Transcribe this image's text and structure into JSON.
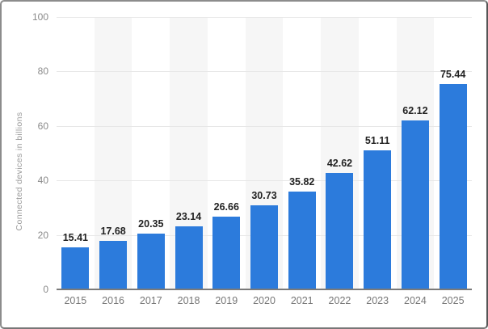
{
  "chart_data": {
    "type": "bar",
    "title": "",
    "ylabel": "Connected devices in billions",
    "xlabel": "",
    "categories": [
      "2015",
      "2016",
      "2017",
      "2018",
      "2019",
      "2020",
      "2021",
      "2022",
      "2023",
      "2024",
      "2025"
    ],
    "values": [
      15.41,
      17.68,
      20.35,
      23.14,
      26.66,
      30.73,
      35.82,
      42.62,
      51.11,
      62.12,
      75.44
    ],
    "value_labels": [
      "15.41",
      "17.68",
      "20.35",
      "23.14",
      "26.66",
      "30.73",
      "35.82",
      "42.62",
      "51.11",
      "62.12",
      "75.44"
    ],
    "ylim": [
      0,
      100
    ],
    "yticks": [
      0,
      20,
      40,
      60,
      80,
      100
    ],
    "grid": "horizontal gridlines at each y tick",
    "legend": "none",
    "plot_background": "alternating vertical column stripes",
    "colors": {
      "bar": "#2c7bdc",
      "value_label": "#222222",
      "tick_label": "#8a8a8a",
      "year_label": "#767676",
      "y_title": "#9a9a9a",
      "grid_line": "#e7e7e7",
      "axis_line": "#7a7a7a",
      "stripe": "#f6f6f6",
      "background": "#ffffff"
    }
  }
}
